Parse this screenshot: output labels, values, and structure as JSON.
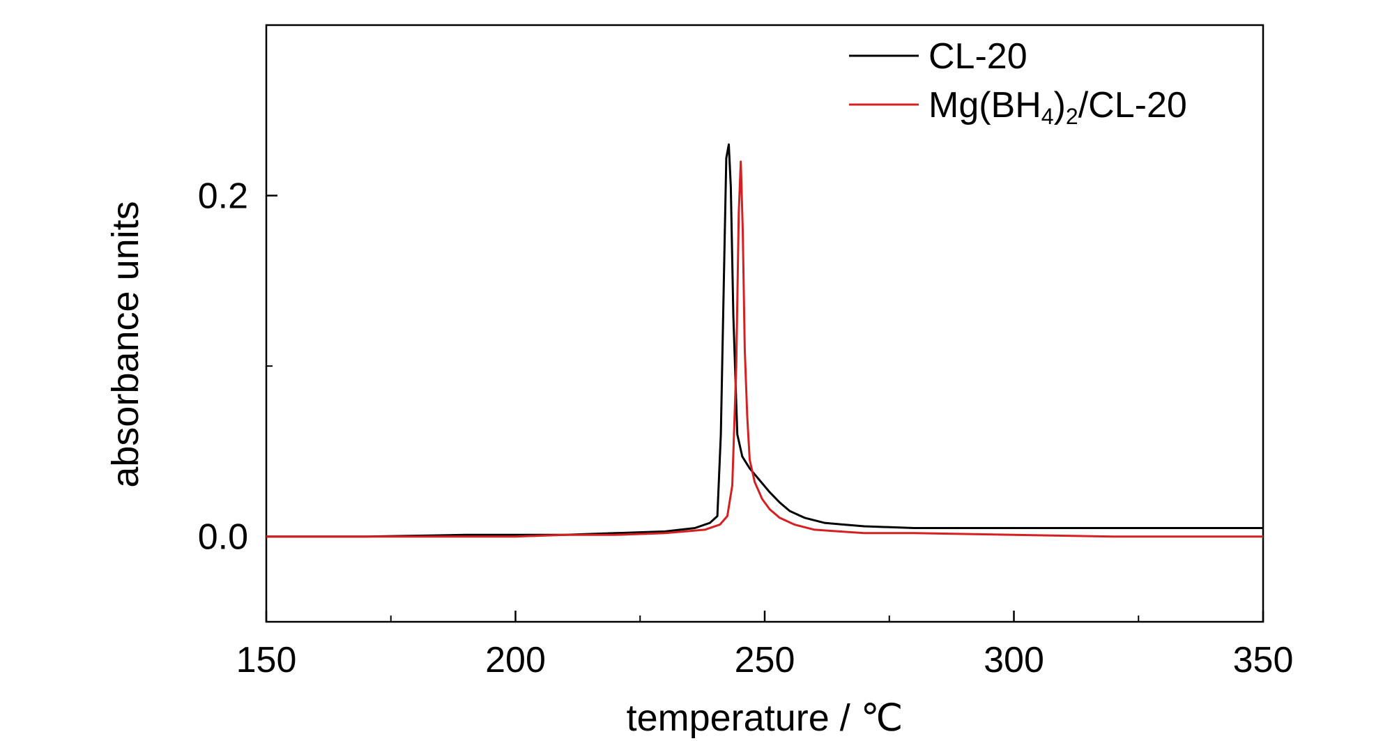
{
  "chart_data": {
    "type": "line",
    "title": "",
    "xlabel": "temperature / ℃",
    "ylabel": "absorbance units",
    "xlim": [
      150,
      350
    ],
    "ylim": [
      -0.05,
      0.3
    ],
    "x_ticks": [
      150,
      200,
      250,
      300,
      350
    ],
    "x_minor_ticks": [
      175,
      225,
      275,
      325
    ],
    "y_ticks": [
      0.0,
      0.2
    ],
    "y_tick_labels": [
      "0.0",
      "0.2"
    ],
    "y_minor_ticks": [
      0.1
    ],
    "grid": false,
    "legend_position": "top-right",
    "series": [
      {
        "name": "CL-20",
        "color": "#000000",
        "x": [
          150,
          170,
          190,
          200,
          210,
          220,
          230,
          236,
          239,
          240.5,
          241.2,
          241.8,
          242.3,
          242.8,
          243.2,
          243.7,
          244.5,
          245.5,
          247,
          249,
          251,
          253,
          255,
          258,
          262,
          266,
          270,
          280,
          300,
          320,
          350
        ],
        "y": [
          0.0,
          0.0,
          0.001,
          0.001,
          0.001,
          0.002,
          0.003,
          0.005,
          0.008,
          0.012,
          0.06,
          0.15,
          0.222,
          0.23,
          0.205,
          0.13,
          0.06,
          0.047,
          0.04,
          0.033,
          0.026,
          0.02,
          0.015,
          0.011,
          0.008,
          0.007,
          0.006,
          0.005,
          0.005,
          0.005,
          0.005
        ]
      },
      {
        "name": "Mg(BH4)2/CL-20",
        "label_main": "Mg(BH",
        "label_sub1": "4",
        "label_mid": ")",
        "label_sub2": "2",
        "label_tail": "/CL-20",
        "color": "#d42020",
        "x": [
          150,
          170,
          190,
          200,
          210,
          220,
          230,
          238,
          241,
          242.5,
          243.5,
          244.3,
          244.8,
          245.2,
          245.6,
          246,
          246.5,
          247,
          248,
          249.5,
          251,
          253,
          256,
          260,
          265,
          270,
          280,
          300,
          320,
          350
        ],
        "y": [
          0.0,
          0.0,
          0.0,
          0.0,
          0.001,
          0.001,
          0.002,
          0.004,
          0.007,
          0.012,
          0.03,
          0.1,
          0.19,
          0.22,
          0.18,
          0.11,
          0.07,
          0.045,
          0.032,
          0.022,
          0.016,
          0.011,
          0.007,
          0.004,
          0.003,
          0.002,
          0.002,
          0.001,
          0.0,
          0.0
        ]
      }
    ]
  }
}
